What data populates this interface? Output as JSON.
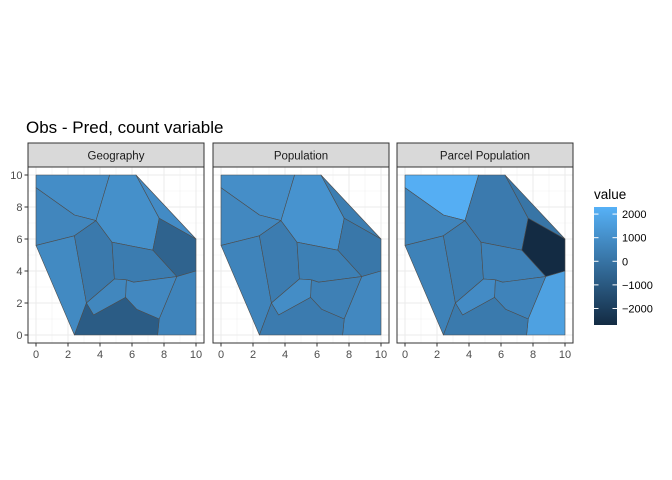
{
  "chart_data": {
    "type": "heatmap",
    "subtype": "voronoi-facets",
    "title": "Obs - Pred, count variable",
    "x_ticks": [
      0,
      2,
      4,
      6,
      8,
      10
    ],
    "y_ticks": [
      0,
      2,
      4,
      6,
      8,
      10
    ],
    "xlim": [
      0,
      10
    ],
    "ylim": [
      0,
      10
    ],
    "grid": true,
    "legend": {
      "title": "value",
      "position": "right",
      "ticks": [
        2000,
        1000,
        0,
        -1000,
        -2000
      ],
      "tick_labels": [
        "2000",
        "1000",
        "0",
        "−1000",
        "−2000"
      ],
      "min": -2700,
      "max": 2300,
      "low_color": "#132B43",
      "high_color": "#56B1F7"
    },
    "cells": [
      {
        "id": "top-left",
        "polygon": [
          [
            0,
            9.2
          ],
          [
            0,
            10
          ],
          [
            4.6,
            10
          ],
          [
            3.75,
            7.15
          ],
          [
            2.4,
            7.5
          ]
        ]
      },
      {
        "id": "left",
        "polygon": [
          [
            0,
            9.2
          ],
          [
            2.4,
            7.5
          ],
          [
            3.75,
            7.15
          ],
          [
            2.4,
            6.2
          ],
          [
            0,
            5.6
          ]
        ]
      },
      {
        "id": "bottom-left",
        "polygon": [
          [
            0,
            5.6
          ],
          [
            2.4,
            6.2
          ],
          [
            3.15,
            2
          ],
          [
            2.4,
            0
          ]
        ]
      },
      {
        "id": "left-center",
        "polygon": [
          [
            3.75,
            7.15
          ],
          [
            2.4,
            6.2
          ],
          [
            3.15,
            2
          ],
          [
            4.9,
            3.5
          ],
          [
            4.75,
            5.8
          ]
        ]
      },
      {
        "id": "top-center",
        "polygon": [
          [
            4.6,
            10
          ],
          [
            3.75,
            7.15
          ],
          [
            4.75,
            5.8
          ],
          [
            7.3,
            5.3
          ],
          [
            7.7,
            7.3
          ],
          [
            6.25,
            10
          ]
        ]
      },
      {
        "id": "top-right",
        "polygon": [
          [
            6.25,
            10
          ],
          [
            7.7,
            7.3
          ],
          [
            10,
            6
          ]
        ]
      },
      {
        "id": "right",
        "polygon": [
          [
            7.7,
            7.3
          ],
          [
            7.3,
            5.3
          ],
          [
            8.8,
            3.65
          ],
          [
            10,
            4
          ],
          [
            10,
            6
          ]
        ]
      },
      {
        "id": "center",
        "polygon": [
          [
            4.75,
            5.8
          ],
          [
            7.3,
            5.3
          ],
          [
            8.8,
            3.65
          ],
          [
            6.1,
            3.3
          ],
          [
            5.65,
            3.45
          ],
          [
            4.9,
            3.5
          ]
        ]
      },
      {
        "id": "mid-small",
        "polygon": [
          [
            4.9,
            3.5
          ],
          [
            5.65,
            3.45
          ],
          [
            5.6,
            2.35
          ],
          [
            3.6,
            1.25
          ],
          [
            3.15,
            2
          ]
        ]
      },
      {
        "id": "mid-right",
        "polygon": [
          [
            5.65,
            3.45
          ],
          [
            6.1,
            3.3
          ],
          [
            8.8,
            3.65
          ],
          [
            7.7,
            1
          ],
          [
            6.3,
            1.6
          ],
          [
            5.6,
            2.35
          ]
        ]
      },
      {
        "id": "bottom-right",
        "polygon": [
          [
            8.8,
            3.65
          ],
          [
            10,
            4
          ],
          [
            10,
            0
          ],
          [
            7.6,
            0
          ],
          [
            7.7,
            1
          ]
        ]
      },
      {
        "id": "bottom-center",
        "polygon": [
          [
            2.4,
            0
          ],
          [
            3.15,
            2
          ],
          [
            3.6,
            1.25
          ],
          [
            5.6,
            2.35
          ],
          [
            6.3,
            1.6
          ],
          [
            7.7,
            1
          ],
          [
            7.6,
            0
          ]
        ]
      }
    ],
    "facets": [
      {
        "label": "Geography",
        "values": {
          "top-left": 960,
          "left": 700,
          "bottom-left": 840,
          "left-center": 220,
          "top-center": 1060,
          "top-right": 900,
          "right": -620,
          "center": 320,
          "mid-small": 720,
          "mid-right": 780,
          "bottom-right": 620,
          "bottom-center": -880
        }
      },
      {
        "label": "Population",
        "values": {
          "top-left": 1000,
          "left": 780,
          "bottom-left": 620,
          "left-center": 340,
          "top-center": 1180,
          "top-right": 380,
          "right": 140,
          "center": 460,
          "mid-small": 940,
          "mid-right": 480,
          "bottom-right": 780,
          "bottom-center": 300
        }
      },
      {
        "label": "Parcel Population",
        "values": {
          "top-left": 2200,
          "left": 660,
          "bottom-left": 540,
          "left-center": 360,
          "top-center": 260,
          "top-right": 50,
          "right": -2700,
          "center": 520,
          "mid-small": 900,
          "mid-right": 600,
          "bottom-right": 1700,
          "bottom-center": 240
        }
      }
    ]
  }
}
